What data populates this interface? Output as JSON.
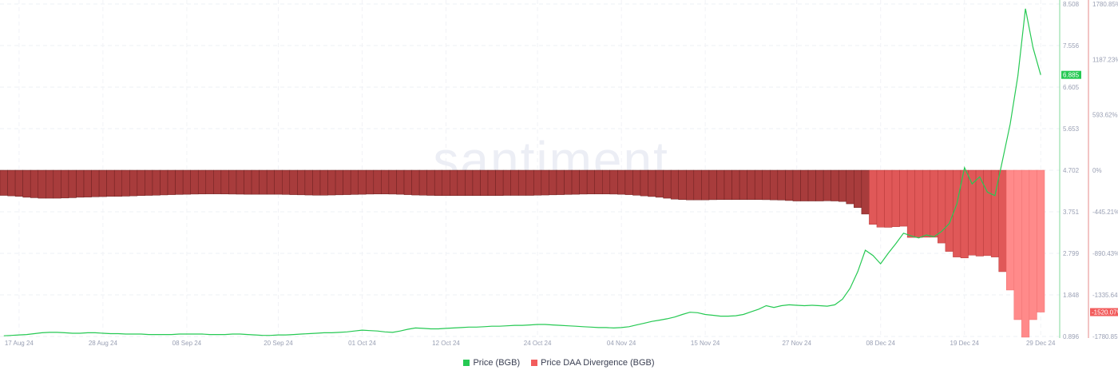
{
  "chart_data": {
    "type": "bar+line",
    "watermark": "santiment.",
    "grid": true,
    "legend_position": "bottom",
    "x_tick_labels": [
      "17 Aug 24",
      "28 Aug 24",
      "08 Sep 24",
      "20 Sep 24",
      "01 Oct 24",
      "12 Oct 24",
      "24 Oct 24",
      "04 Nov 24",
      "15 Nov 24",
      "27 Nov 24",
      "08 Dec 24",
      "19 Dec 24",
      "29 Dec 24"
    ],
    "x_tick_dates": [
      "2024-08-17",
      "2024-08-28",
      "2024-09-08",
      "2024-09-20",
      "2024-10-01",
      "2024-10-12",
      "2024-10-24",
      "2024-11-04",
      "2024-11-15",
      "2024-11-27",
      "2024-12-08",
      "2024-12-19",
      "2024-12-29"
    ],
    "price_axis": {
      "ticks": [
        "8.508",
        "7.556",
        "6.605",
        "5.653",
        "4.702",
        "3.751",
        "2.799",
        "1.848",
        "0.896"
      ],
      "ylim": [
        0.896,
        8.508
      ],
      "color": "#26c953"
    },
    "divergence_axis": {
      "ticks": [
        "1780.85%",
        "1187.23%",
        "593.62%",
        "0%",
        "-445.21%",
        "-890.43%",
        "-1335.64%",
        "-1780.85%"
      ],
      "ylim": [
        -1780.85,
        1780.85
      ],
      "color": "#f25c5c"
    },
    "price_badge": "6.885",
    "divergence_badge": "-1520.07%",
    "series": [
      {
        "name": "Price (BGB)",
        "type": "line",
        "color": "#26c953",
        "values": [
          0.91,
          0.92,
          0.93,
          0.94,
          0.96,
          0.98,
          0.99,
          0.99,
          0.98,
          0.97,
          0.97,
          0.98,
          0.98,
          0.97,
          0.96,
          0.96,
          0.95,
          0.95,
          0.95,
          0.94,
          0.94,
          0.94,
          0.94,
          0.95,
          0.95,
          0.95,
          0.95,
          0.94,
          0.94,
          0.94,
          0.95,
          0.95,
          0.94,
          0.93,
          0.92,
          0.92,
          0.93,
          0.93,
          0.94,
          0.95,
          0.96,
          0.97,
          0.98,
          0.98,
          0.99,
          1.0,
          1.02,
          1.04,
          1.03,
          1.02,
          1.0,
          0.99,
          1.02,
          1.06,
          1.09,
          1.08,
          1.07,
          1.07,
          1.08,
          1.09,
          1.1,
          1.11,
          1.11,
          1.12,
          1.13,
          1.13,
          1.14,
          1.15,
          1.15,
          1.16,
          1.17,
          1.17,
          1.16,
          1.15,
          1.14,
          1.13,
          1.12,
          1.11,
          1.1,
          1.1,
          1.09,
          1.1,
          1.12,
          1.16,
          1.2,
          1.24,
          1.27,
          1.3,
          1.34,
          1.4,
          1.45,
          1.44,
          1.4,
          1.38,
          1.36,
          1.36,
          1.37,
          1.4,
          1.46,
          1.52,
          1.6,
          1.56,
          1.6,
          1.62,
          1.61,
          1.6,
          1.61,
          1.6,
          1.59,
          1.62,
          1.75,
          2.0,
          2.38,
          2.87,
          2.75,
          2.56,
          2.8,
          3.02,
          3.26,
          3.2,
          3.15,
          3.22,
          3.18,
          3.3,
          3.48,
          3.93,
          4.76,
          4.39,
          4.55,
          4.2,
          4.12,
          4.94,
          5.76,
          6.86,
          8.4,
          7.5,
          6.885
        ]
      },
      {
        "name": "Price DAA Divergence (BGB)",
        "type": "bar",
        "color": "#f25c5c",
        "unit": "%",
        "values": [
          -270,
          -275,
          -280,
          -290,
          -295,
          -300,
          -300,
          -300,
          -298,
          -295,
          -290,
          -288,
          -285,
          -283,
          -280,
          -280,
          -278,
          -275,
          -272,
          -270,
          -268,
          -265,
          -262,
          -260,
          -258,
          -256,
          -255,
          -254,
          -254,
          -255,
          -256,
          -257,
          -258,
          -258,
          -258,
          -258,
          -258,
          -260,
          -262,
          -264,
          -266,
          -268,
          -268,
          -266,
          -264,
          -262,
          -260,
          -258,
          -256,
          -255,
          -255,
          -256,
          -258,
          -262,
          -266,
          -268,
          -270,
          -272,
          -272,
          -272,
          -272,
          -272,
          -272,
          -272,
          -272,
          -272,
          -270,
          -270,
          -270,
          -270,
          -268,
          -266,
          -264,
          -262,
          -260,
          -258,
          -256,
          -255,
          -255,
          -255,
          -256,
          -258,
          -262,
          -268,
          -275,
          -282,
          -290,
          -300,
          -310,
          -315,
          -318,
          -318,
          -318,
          -316,
          -315,
          -315,
          -315,
          -315,
          -315,
          -315,
          -316,
          -318,
          -320,
          -325,
          -330,
          -330,
          -330,
          -330,
          -328,
          -330,
          -335,
          -360,
          -400,
          -470,
          -580,
          -610,
          -612,
          -605,
          -600,
          -720,
          -720,
          -718,
          -718,
          -780,
          -870,
          -930,
          -940,
          -910,
          -920,
          -915,
          -930,
          -1087,
          -1284,
          -1601,
          -1789,
          -1601,
          -1520.07
        ]
      }
    ]
  },
  "legend": {
    "items": [
      {
        "label": "Price (BGB)",
        "color": "#26c953"
      },
      {
        "label": "Price DAA Divergence (BGB)",
        "color": "#f25c5c"
      }
    ]
  }
}
